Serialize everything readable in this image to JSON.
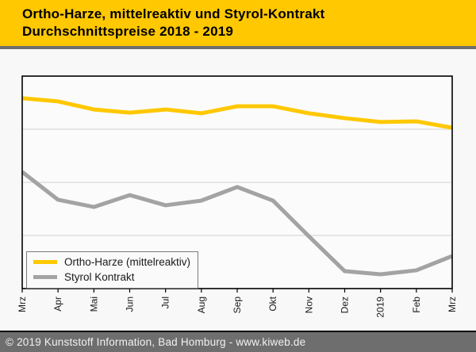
{
  "header": {
    "title_line1": "Ortho-Harze, mittelreaktiv und Styrol-Kontrakt",
    "title_line2": "Durchschnittspreise 2018 - 2019"
  },
  "footer": {
    "text": "© 2019 Kunststoff Information, Bad Homburg - www.kiweb.de"
  },
  "colors": {
    "header_yellow": "#ffc800",
    "ortho_line": "#ffc800",
    "styrol_line": "#a3a3a3",
    "gridline": "#d9d9d9",
    "plot_border": "#000000",
    "plot_background": "#fbfbfb",
    "footer_gray": "#6e6e6e"
  },
  "chart_data": {
    "type": "line",
    "title": "Ortho-Harze, mittelreaktiv und Styrol-Kontrakt Durchschnittspreise 2018 - 2019",
    "categories": [
      "Mrz",
      "Apr",
      "Mai",
      "Jun",
      "Jul",
      "Aug",
      "Sep",
      "Okt",
      "Nov",
      "Dez",
      "2019",
      "Feb",
      "Mrz"
    ],
    "series": [
      {
        "name": "Ortho-Harze (mittelreaktiv)",
        "color": "#ffc800",
        "values_pct_of_plot_height": [
          89.6,
          88.1,
          84.3,
          82.8,
          84.3,
          82.5,
          85.8,
          85.8,
          82.5,
          80.2,
          78.4,
          78.7,
          75.7
        ]
      },
      {
        "name": "Styrol Kontrakt",
        "color": "#a3a3a3",
        "values_pct_of_plot_height": [
          54.9,
          41.8,
          38.4,
          44.0,
          39.2,
          41.4,
          47.8,
          41.4,
          24.6,
          8.2,
          6.7,
          8.6,
          15.3
        ]
      }
    ],
    "xlabel": "",
    "ylabel": "",
    "y_axis": {
      "tick_labels_visible": false,
      "note": "no numeric y-axis labels shown; values given as percent of plot height",
      "gridlines_pct": [
        25,
        50,
        75
      ]
    },
    "legend": {
      "position": "bottom-left",
      "entries": [
        "Ortho-Harze (mittelreaktiv)",
        "Styrol Kontrakt"
      ]
    },
    "grid": true
  }
}
